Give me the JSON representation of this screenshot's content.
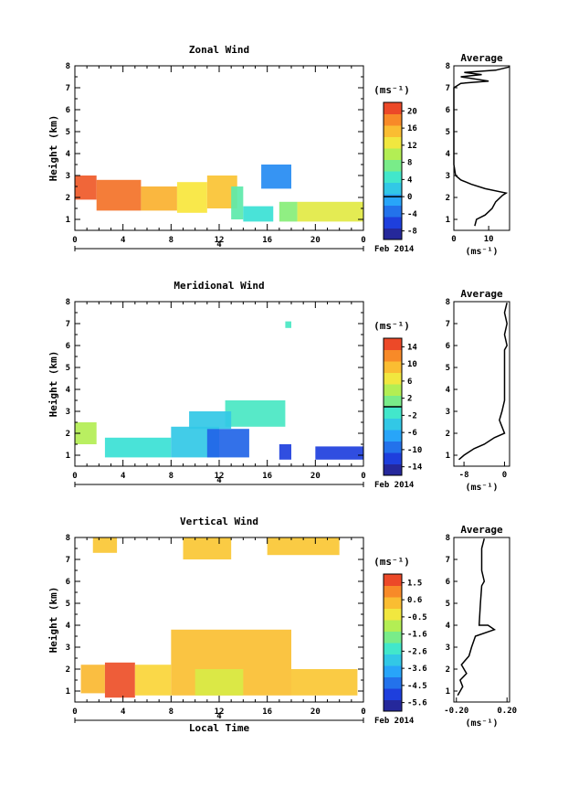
{
  "chart_data": [
    {
      "type": "heatmap",
      "title": "Zonal Wind",
      "ylabel": "Height (km)",
      "unit_label": "(ms⁻¹)",
      "x_ticks": [
        "0",
        "4",
        "8",
        "12",
        "16",
        "20",
        "0"
      ],
      "y_ticks": [
        "1",
        "2",
        "3",
        "4",
        "5",
        "6",
        "7",
        "8"
      ],
      "xlim": [
        0,
        24
      ],
      "ylim": [
        0.5,
        8.0
      ],
      "date_label": "4",
      "month_label": "Feb 2014",
      "colorbar": {
        "ticks": [
          "20",
          "16",
          "12",
          "8",
          "4",
          "0",
          "-4",
          "-8"
        ],
        "range": [
          -10,
          22
        ],
        "zero_line": 0
      },
      "cells": [
        {
          "x0": 0.0,
          "x1": 1.8,
          "y0": 1.9,
          "y1": 3.0,
          "v": 20
        },
        {
          "x0": 1.8,
          "x1": 5.5,
          "y0": 1.4,
          "y1": 2.8,
          "v": 19
        },
        {
          "x0": 5.5,
          "x1": 8.5,
          "y0": 1.4,
          "y1": 2.5,
          "v": 16
        },
        {
          "x0": 8.5,
          "x1": 11.0,
          "y0": 1.3,
          "y1": 2.7,
          "v": 13
        },
        {
          "x0": 11.0,
          "x1": 13.5,
          "y0": 1.5,
          "y1": 3.0,
          "v": 15
        },
        {
          "x0": 13.0,
          "x1": 14.0,
          "y0": 1.0,
          "y1": 2.5,
          "v": 6
        },
        {
          "x0": 14.0,
          "x1": 16.5,
          "y0": 0.9,
          "y1": 1.6,
          "v": 4
        },
        {
          "x0": 15.5,
          "x1": 18.0,
          "y0": 2.4,
          "y1": 3.5,
          "v": -2
        },
        {
          "x0": 17.0,
          "x1": 18.5,
          "y0": 0.9,
          "y1": 1.8,
          "v": 8
        },
        {
          "x0": 18.5,
          "x1": 24.0,
          "y0": 0.9,
          "y1": 1.8,
          "v": 12
        }
      ],
      "profile": {
        "title": "Average",
        "xlabel": "(ms⁻¹)",
        "x_ticks": [
          "0",
          "10"
        ],
        "xlim": [
          0,
          16
        ],
        "points": [
          [
            6,
            0.7
          ],
          [
            6.5,
            1.0
          ],
          [
            9,
            1.2
          ],
          [
            11,
            1.5
          ],
          [
            12,
            1.8
          ],
          [
            14,
            2.1
          ],
          [
            15,
            2.2
          ],
          [
            9,
            2.4
          ],
          [
            5,
            2.6
          ],
          [
            2,
            2.8
          ],
          [
            0.5,
            3.0
          ],
          [
            0,
            3.5
          ],
          [
            0,
            7.0
          ],
          [
            2,
            7.2
          ],
          [
            10,
            7.3
          ],
          [
            2,
            7.5
          ],
          [
            8,
            7.6
          ],
          [
            3,
            7.7
          ],
          [
            12,
            7.8
          ],
          [
            16,
            7.95
          ]
        ]
      }
    },
    {
      "type": "heatmap",
      "title": "Meridional Wind",
      "ylabel": "Height (km)",
      "unit_label": "(ms⁻¹)",
      "x_ticks": [
        "0",
        "4",
        "8",
        "12",
        "16",
        "20",
        "0"
      ],
      "y_ticks": [
        "1",
        "2",
        "3",
        "4",
        "5",
        "6",
        "7",
        "8"
      ],
      "xlim": [
        0,
        24
      ],
      "ylim": [
        0.5,
        8.0
      ],
      "date_label": "4",
      "month_label": "Feb 2014",
      "colorbar": {
        "ticks": [
          "14",
          "10",
          "6",
          "2",
          "-2",
          "-6",
          "-10",
          "-14"
        ],
        "range": [
          -16,
          16
        ],
        "zero_line": 0
      },
      "cells": [
        {
          "x0": 0.0,
          "x1": 1.8,
          "y0": 1.5,
          "y1": 2.5,
          "v": 4
        },
        {
          "x0": 2.5,
          "x1": 8.0,
          "y0": 0.9,
          "y1": 1.8,
          "v": -2
        },
        {
          "x0": 8.0,
          "x1": 12.0,
          "y0": 0.9,
          "y1": 2.3,
          "v": -4
        },
        {
          "x0": 11.0,
          "x1": 14.5,
          "y0": 0.9,
          "y1": 2.2,
          "v": -10
        },
        {
          "x0": 12.5,
          "x1": 17.5,
          "y0": 2.3,
          "y1": 3.5,
          "v": -1
        },
        {
          "x0": 9.5,
          "x1": 13.0,
          "y0": 2.2,
          "y1": 3.0,
          "v": -4
        },
        {
          "x0": 17.0,
          "x1": 18.0,
          "y0": 0.8,
          "y1": 1.5,
          "v": -12
        },
        {
          "x0": 20.0,
          "x1": 24.0,
          "y0": 0.8,
          "y1": 1.4,
          "v": -12
        },
        {
          "x0": 17.5,
          "x1": 18.0,
          "y0": 6.8,
          "y1": 7.1,
          "v": -1
        }
      ],
      "profile": {
        "title": "Average",
        "xlabel": "(ms⁻¹)",
        "x_ticks": [
          "-8",
          "0"
        ],
        "xlim": [
          -10,
          1
        ],
        "points": [
          [
            -9,
            0.8
          ],
          [
            -8,
            1.0
          ],
          [
            -6,
            1.3
          ],
          [
            -4,
            1.5
          ],
          [
            -2,
            1.8
          ],
          [
            0,
            2.0
          ],
          [
            -0.5,
            2.3
          ],
          [
            -1,
            2.6
          ],
          [
            -0.5,
            3.0
          ],
          [
            0,
            3.5
          ],
          [
            0,
            5.8
          ],
          [
            0.5,
            6.0
          ],
          [
            0,
            6.5
          ],
          [
            0.5,
            7.0
          ],
          [
            0,
            7.5
          ],
          [
            0.5,
            7.95
          ]
        ]
      }
    },
    {
      "type": "heatmap",
      "title": "Vertical Wind",
      "ylabel": "Height (km)",
      "xlabel": "Local Time",
      "unit_label": "(ms⁻¹)",
      "x_ticks": [
        "0",
        "4",
        "8",
        "12",
        "16",
        "20",
        "0"
      ],
      "y_ticks": [
        "1",
        "2",
        "3",
        "4",
        "5",
        "6",
        "7",
        "8"
      ],
      "xlim": [
        0,
        24
      ],
      "ylim": [
        0.5,
        8.0
      ],
      "date_label": "4",
      "month_label": "Feb 2014",
      "colorbar": {
        "ticks": [
          "1.5",
          "0.6",
          "-0.5",
          "-1.6",
          "-2.6",
          "-3.6",
          "-4.5",
          "-5.6"
        ],
        "range": [
          -6,
          2
        ]
      },
      "cells": [
        {
          "x0": 0.5,
          "x1": 2.5,
          "y0": 0.9,
          "y1": 2.2,
          "v": 0.4
        },
        {
          "x0": 2.5,
          "x1": 5.0,
          "y0": 0.7,
          "y1": 2.3,
          "v": 1.6
        },
        {
          "x0": 5.0,
          "x1": 8.0,
          "y0": 0.8,
          "y1": 2.2,
          "v": 0.0
        },
        {
          "x0": 8.0,
          "x1": 18.0,
          "y0": 0.8,
          "y1": 3.8,
          "v": 0.3
        },
        {
          "x0": 10.0,
          "x1": 14.0,
          "y0": 0.8,
          "y1": 2.0,
          "v": -0.6
        },
        {
          "x0": 18.0,
          "x1": 23.5,
          "y0": 0.8,
          "y1": 2.0,
          "v": 0.2
        },
        {
          "x0": 1.5,
          "x1": 3.5,
          "y0": 7.3,
          "y1": 8.0,
          "v": 0.2
        },
        {
          "x0": 9.0,
          "x1": 13.0,
          "y0": 7.0,
          "y1": 8.0,
          "v": 0.2
        },
        {
          "x0": 16.0,
          "x1": 22.0,
          "y0": 7.2,
          "y1": 8.0,
          "v": 0.2
        }
      ],
      "profile": {
        "title": "Average",
        "xlabel": "(ms⁻¹)",
        "x_ticks": [
          "-0.20",
          "0.20"
        ],
        "xlim": [
          -0.22,
          0.22
        ],
        "points": [
          [
            -0.19,
            0.8
          ],
          [
            -0.15,
            1.2
          ],
          [
            -0.17,
            1.5
          ],
          [
            -0.12,
            1.8
          ],
          [
            -0.16,
            2.2
          ],
          [
            -0.1,
            2.6
          ],
          [
            -0.08,
            3.0
          ],
          [
            -0.05,
            3.5
          ],
          [
            0.1,
            3.8
          ],
          [
            0.05,
            4.0
          ],
          [
            -0.02,
            4.0
          ],
          [
            -0.01,
            5.0
          ],
          [
            0.0,
            5.8
          ],
          [
            0.02,
            6.0
          ],
          [
            0.0,
            6.5
          ],
          [
            0.0,
            7.5
          ],
          [
            0.02,
            7.95
          ]
        ]
      }
    }
  ]
}
